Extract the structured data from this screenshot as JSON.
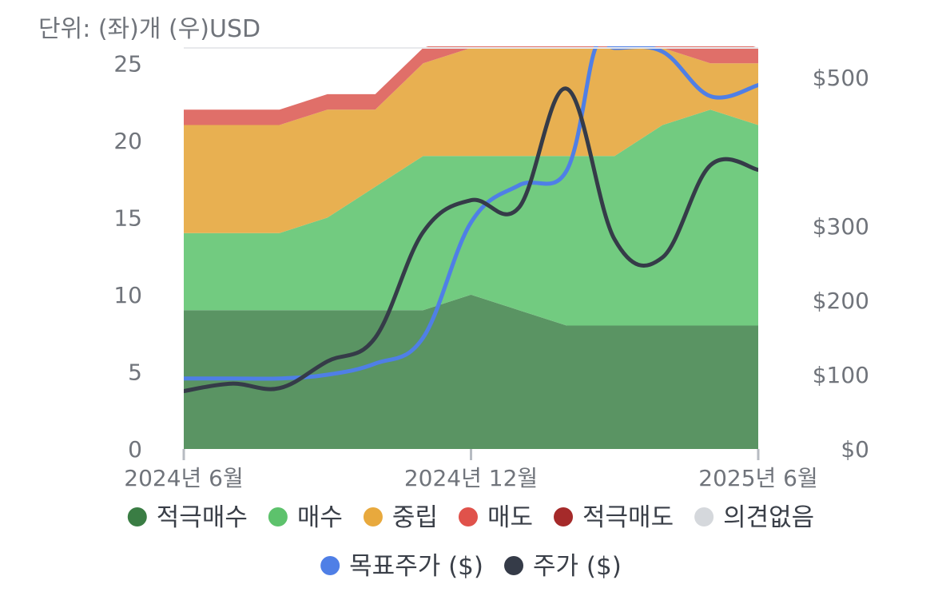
{
  "chart_data": {
    "type": "area",
    "unit_label": "단위: (좌)개 (우)USD",
    "x": [
      "2024-06",
      "2024-07",
      "2024-08",
      "2024-09",
      "2024-10",
      "2024-11",
      "2024-12",
      "2025-01",
      "2025-02",
      "2025-03",
      "2025-04",
      "2025-05",
      "2025-06"
    ],
    "x_tick_labels": [
      "2024년 6월",
      "2024년 12월",
      "2025년 6월"
    ],
    "x_tick_index": [
      0,
      6,
      12
    ],
    "ylim_left": [
      0,
      26
    ],
    "yticks_left": [
      "0",
      "5",
      "10",
      "15",
      "20",
      "25"
    ],
    "ylim_right": [
      0,
      540
    ],
    "yticks_right": [
      "$0",
      "$100",
      "$200",
      "$300",
      "$500"
    ],
    "yticks_right_values": [
      0,
      100,
      200,
      300,
      500
    ],
    "grid": false,
    "legend_position": "bottom",
    "stacked_series": [
      {
        "name": "적극매수",
        "color": "#5a9463",
        "legend_color": "#3a7d44",
        "values": [
          9,
          9,
          9,
          9,
          9,
          9,
          10,
          9,
          8,
          8,
          8,
          8,
          8
        ]
      },
      {
        "name": "매수",
        "color": "#72cb80",
        "legend_color": "#5dc26c",
        "values": [
          5,
          5,
          5,
          6,
          8,
          10,
          9,
          10,
          11,
          11,
          13,
          14,
          13
        ]
      },
      {
        "name": "중립",
        "color": "#e8b051",
        "legend_color": "#e8a93d",
        "values": [
          7,
          7,
          7,
          7,
          5,
          6,
          7,
          7,
          7,
          7,
          5,
          3,
          4
        ]
      },
      {
        "name": "매도",
        "color": "#e06f69",
        "legend_color": "#e0524b",
        "values": [
          1,
          1,
          1,
          1,
          1,
          1,
          1,
          1,
          1,
          2,
          2,
          2,
          1
        ]
      },
      {
        "name": "적극매도",
        "color": "#a52a2a",
        "legend_color": "#a52a2a",
        "values": [
          0,
          0,
          0,
          0,
          0,
          0,
          0,
          0,
          0,
          0,
          0,
          0,
          0
        ]
      },
      {
        "name": "의견없음",
        "color": "#d5d8dc",
        "legend_color": "#d5d8dc",
        "values": [
          0,
          0,
          0,
          0,
          0,
          0,
          0,
          0,
          0,
          0,
          0,
          0,
          0
        ]
      }
    ],
    "line_series": [
      {
        "name": "목표주가 ($)",
        "color": "#4f7fe6",
        "x": [
          0,
          1,
          2,
          3,
          4,
          5,
          6,
          7,
          8,
          8.6,
          9,
          10,
          11,
          12
        ],
        "values": [
          95,
          95,
          95,
          100,
          115,
          150,
          305,
          355,
          375,
          540,
          540,
          535,
          475,
          490
        ]
      },
      {
        "name": "주가 ($)",
        "color": "#353b48",
        "x": [
          0,
          1,
          2,
          3,
          4,
          5,
          6,
          7,
          8,
          9,
          10,
          11,
          12
        ],
        "values": [
          78,
          88,
          82,
          118,
          150,
          292,
          335,
          325,
          485,
          282,
          258,
          382,
          376
        ]
      }
    ]
  }
}
